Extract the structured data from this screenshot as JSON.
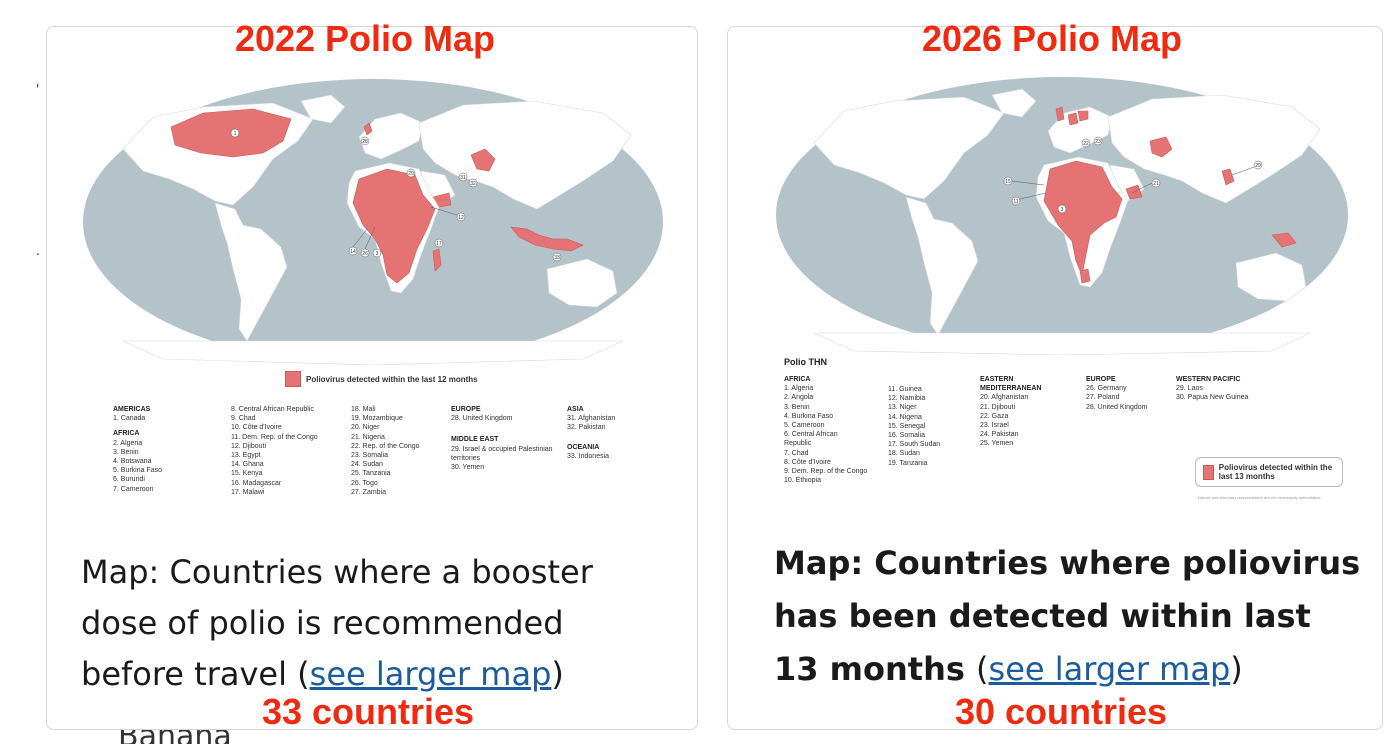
{
  "left": {
    "heading": "2022 Polio Map",
    "legend": "Poliovirus detected within the last 12 months",
    "regions": [
      {
        "name": "AMERICAS",
        "items": [
          "1. Canada"
        ]
      },
      {
        "name": "AFRICA",
        "items": [
          "2. Algeria",
          "3. Benin",
          "4. Botswana",
          "5. Burkina Faso",
          "6. Burundi",
          "7. Cameroon",
          "8. Central African Republic",
          "9. Chad",
          "10. Côte d'Ivoire",
          "11. Dem. Rep. of the Congo",
          "12. Djibouti",
          "13. Egypt",
          "14. Ghana",
          "15. Kenya",
          "16. Madagascar",
          "17. Malawi",
          "18. Mali",
          "19. Mozambique",
          "20. Niger",
          "21. Nigeria",
          "22. Rep. of the Congo",
          "23. Somalia",
          "24. Sudan",
          "25. Tanzania",
          "26. Togo",
          "27. Zambia"
        ]
      },
      {
        "name": "EUROPE",
        "items": [
          "28. United Kingdom"
        ]
      },
      {
        "name": "MIDDLE EAST",
        "items": [
          "29. Israel & occupied Palestinian territories",
          "30. Yemen"
        ]
      },
      {
        "name": "ASIA",
        "items": [
          "31. Afghanistan",
          "32. Pakistan"
        ]
      },
      {
        "name": "OCEANIA",
        "items": [
          "33. Indonesia"
        ]
      }
    ],
    "caption_text": "Map: Countries where a booster dose of polio is recommended before travel ",
    "link_text": "see larger map",
    "count": "33 countries"
  },
  "right": {
    "heading": "2026 Polio Map",
    "map_title": "Polio THN",
    "legend": "Poliovirus detected within the last 13 months",
    "fine_print": "Names and boundary representation are not necessarily authoritative.",
    "regions": [
      {
        "name": "AFRICA",
        "items": [
          "1. Algeria",
          "2. Angola",
          "3. Benin",
          "4. Burkina Faso",
          "5. Cameroon",
          "6. Central African Republic",
          "7. Chad",
          "8. Côte d'Ivoire",
          "9. Dem. Rep. of the Congo",
          "10. Ethiopia",
          "11. Guinea",
          "12. Namibia",
          "13. Niger",
          "14. Nigeria",
          "15. Senegal",
          "16. Somalia",
          "17. South Sudan",
          "18. Sudan",
          "19. Tanzania"
        ]
      },
      {
        "name": "EASTERN MEDITERRANEAN",
        "items": [
          "20. Afghanistan",
          "21. Djibouti",
          "22. Gaza",
          "23. Israel",
          "24. Pakistan",
          "25. Yemen"
        ]
      },
      {
        "name": "EUROPE",
        "items": [
          "26. Germany",
          "27. Poland",
          "28. United Kingdom"
        ]
      },
      {
        "name": "WESTERN PACIFIC",
        "items": [
          "29. Laos",
          "30. Papua New Guinea"
        ]
      }
    ],
    "caption_text": "Map: Countries where poliovirus has been detected within last 13 months ",
    "link_text": "see larger map",
    "count": "30 countries"
  },
  "stray_text": "Banana"
}
